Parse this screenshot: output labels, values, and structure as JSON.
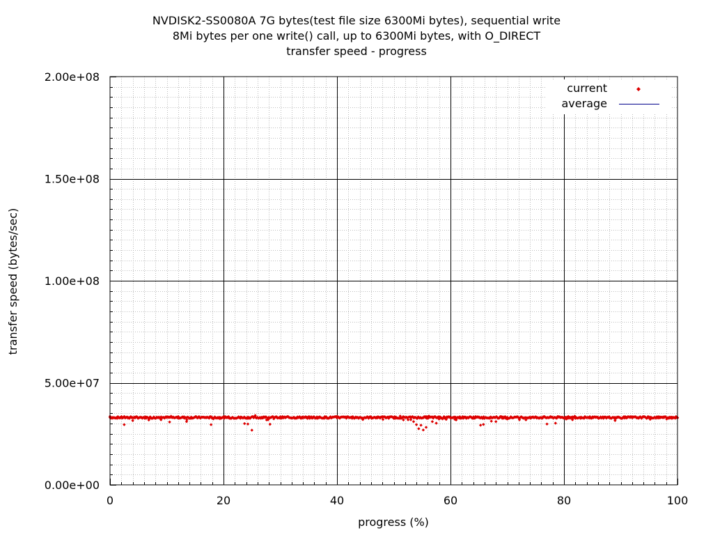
{
  "chart_data": {
    "type": "scatter",
    "title_lines": [
      "NVDISK2-SS0080A 7G bytes(test file size 6300Mi bytes), sequential write",
      "8Mi bytes per one write() call, up to 6300Mi bytes, with O_DIRECT",
      "transfer speed - progress"
    ],
    "xlabel": "progress (%)",
    "ylabel": "transfer speed (bytes/sec)",
    "xlim": [
      0,
      100
    ],
    "ylim": [
      0,
      200000000
    ],
    "x_ticks": [
      0,
      20,
      40,
      60,
      80,
      100
    ],
    "x_tick_labels": [
      "0",
      "20",
      "40",
      "60",
      "80",
      "100"
    ],
    "y_ticks": [
      0,
      50000000,
      100000000,
      150000000,
      200000000
    ],
    "y_tick_labels": [
      "0.00e+00",
      "5.00e+07",
      "1.00e+08",
      "1.50e+08",
      "2.00e+08"
    ],
    "grid": true,
    "legend_position": "top-right",
    "colors": {
      "current": "#dd0000",
      "average": "#00008b"
    },
    "series": [
      {
        "name": "current",
        "style": "points",
        "baseline": 33000000,
        "x": [
          0,
          2,
          2.5,
          4,
          5,
          7,
          9,
          10.5,
          12,
          13.5,
          15,
          17,
          17.8,
          19,
          21,
          23,
          23.7,
          24.3,
          25,
          25.6,
          27,
          28.2,
          30,
          32,
          34,
          36,
          38,
          40,
          42,
          44,
          46,
          48,
          50,
          51.7,
          53,
          53.5,
          54,
          54.4,
          54.8,
          55.2,
          55.7,
          56.2,
          56.8,
          57.5,
          59,
          61,
          63,
          65.3,
          65.8,
          67.2,
          68,
          70,
          72,
          74,
          75.7,
          77,
          78.5,
          80,
          81.5,
          83,
          85,
          87,
          89,
          91,
          93,
          95,
          97,
          99,
          100
        ],
        "y": [
          33500000,
          33200000,
          29500000,
          31500000,
          32800000,
          33100000,
          33300000,
          30800000,
          33000000,
          31000000,
          33200000,
          32900000,
          29500000,
          32700000,
          33100000,
          32600000,
          30000000,
          29800000,
          26800000,
          34000000,
          33300000,
          29700000,
          33100000,
          32800000,
          33300000,
          32900000,
          33100000,
          33500000,
          33200000,
          32900000,
          33300000,
          33100000,
          32700000,
          31800000,
          31900000,
          31000000,
          29500000,
          27500000,
          29200000,
          26900000,
          28200000,
          33700000,
          31000000,
          30200000,
          33100000,
          31800000,
          33000000,
          29200000,
          29600000,
          31200000,
          31000000,
          33100000,
          32800000,
          33200000,
          32900000,
          29800000,
          30200000,
          32900000,
          31900000,
          33200000,
          32800000,
          32900000,
          31500000,
          33100000,
          32800000,
          33200000,
          32900000,
          33100000,
          32800000
        ]
      },
      {
        "name": "average",
        "style": "line",
        "x": [
          0,
          100
        ],
        "y": [
          33000000,
          33000000
        ]
      }
    ]
  }
}
